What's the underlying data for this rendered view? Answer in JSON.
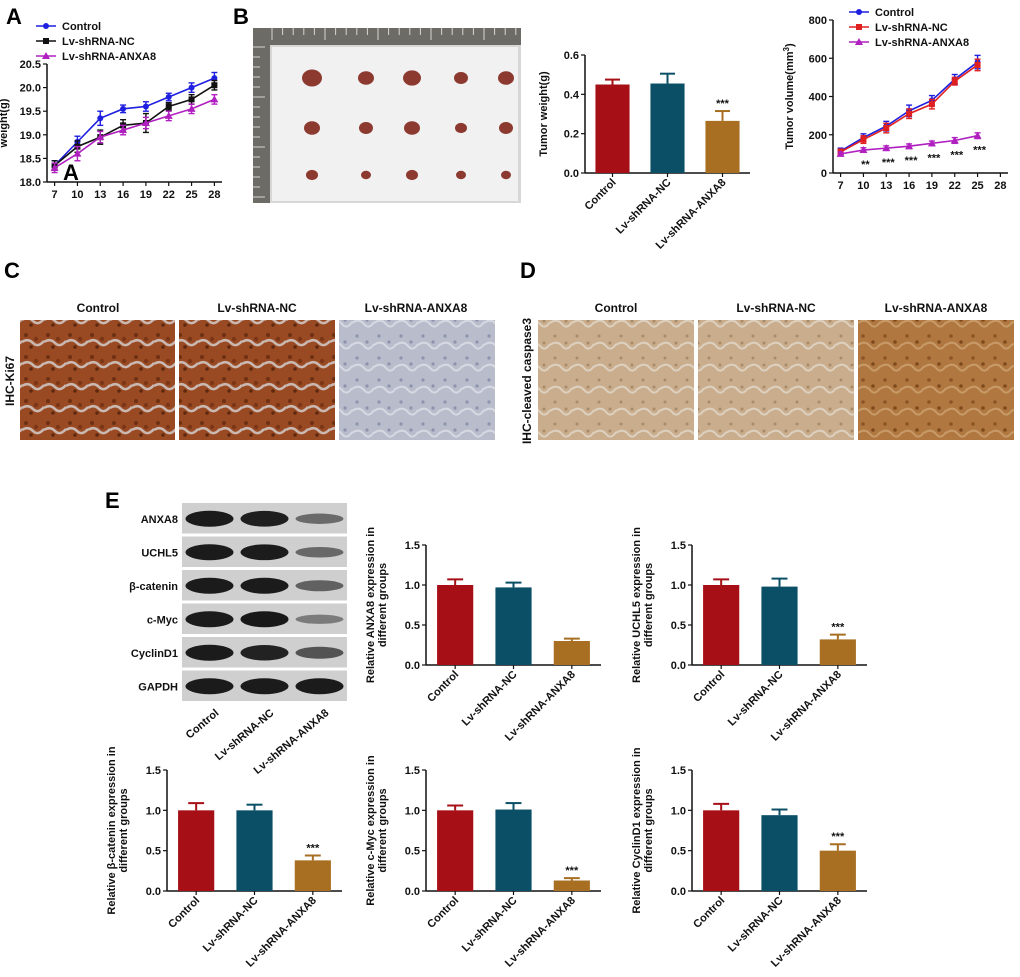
{
  "panel_labels": {
    "A": "A",
    "B": "B",
    "C": "C",
    "D": "D",
    "E": "E"
  },
  "colors": {
    "control": "#a50f15",
    "nc": "#0b4f66",
    "anxa8": "#a86f22",
    "line_control": "#1f1fe0",
    "line_nc": "#111111",
    "line_nc_b": "#e02020",
    "line_anxa8": "#b020c0"
  },
  "chart_data": [
    {
      "id": "A",
      "type": "line",
      "title": "",
      "xlabel": "",
      "ylabel": "weight(g)",
      "x": [
        7,
        10,
        13,
        16,
        19,
        22,
        25,
        28
      ],
      "ylim": [
        18.0,
        20.5
      ],
      "yticks": [
        "18.0",
        "18.5",
        "19.0",
        "19.5",
        "20.0",
        "20.5"
      ],
      "inner_label": "A",
      "series": [
        {
          "name": "Control",
          "values": [
            18.35,
            18.85,
            19.35,
            19.55,
            19.6,
            19.8,
            20.0,
            20.2
          ],
          "errors": [
            0.1,
            0.12,
            0.15,
            0.08,
            0.1,
            0.08,
            0.1,
            0.12
          ]
        },
        {
          "name": "Lv-shRNA-NC",
          "values": [
            18.35,
            18.75,
            18.95,
            19.2,
            19.25,
            19.6,
            19.75,
            20.05
          ],
          "errors": [
            0.1,
            0.12,
            0.15,
            0.12,
            0.2,
            0.08,
            0.1,
            0.1
          ]
        },
        {
          "name": "Lv-shRNA-ANXA8",
          "values": [
            18.3,
            18.6,
            18.95,
            19.1,
            19.25,
            19.4,
            19.55,
            19.75
          ],
          "errors": [
            0.1,
            0.15,
            0.12,
            0.1,
            0.12,
            0.1,
            0.1,
            0.1
          ]
        }
      ]
    },
    {
      "id": "B-weight",
      "type": "bar",
      "title": "",
      "xlabel": "",
      "ylabel": "Tumor weight(g)",
      "categories": [
        "Control",
        "Lv-shRNA-NC",
        "Lv-shRNA-ANXA8"
      ],
      "values": [
        0.45,
        0.455,
        0.265
      ],
      "errors": [
        0.025,
        0.05,
        0.05
      ],
      "ylim": [
        0.0,
        0.6
      ],
      "yticks": [
        "0.0",
        "0.2",
        "0.4",
        "0.6"
      ],
      "significance": [
        "",
        "",
        "***"
      ]
    },
    {
      "id": "B-volume",
      "type": "line",
      "title": "",
      "xlabel": "",
      "ylabel": "Tumor volume(mm",
      "ylabel_sup": "3",
      "ylabel_close": ")",
      "x": [
        7,
        10,
        13,
        16,
        19,
        22,
        25
      ],
      "xticks": [
        "7",
        "10",
        "13",
        "16",
        "19",
        "22",
        "25",
        "28"
      ],
      "ylim": [
        0,
        800
      ],
      "yticks": [
        "0",
        "200",
        "400",
        "600",
        "800"
      ],
      "series": [
        {
          "name": "Control",
          "values": [
            115,
            185,
            245,
            325,
            380,
            490,
            580
          ],
          "errors": [
            15,
            20,
            25,
            30,
            25,
            25,
            35
          ]
        },
        {
          "name": "Lv-shRNA-NC",
          "values": [
            110,
            175,
            235,
            310,
            360,
            480,
            565
          ],
          "errors": [
            15,
            20,
            25,
            25,
            25,
            20,
            30
          ]
        },
        {
          "name": "Lv-shRNA-ANXA8",
          "values": [
            100,
            120,
            130,
            140,
            155,
            170,
            195
          ],
          "errors": [
            10,
            12,
            12,
            12,
            12,
            15,
            15
          ]
        }
      ],
      "significance": [
        "",
        "**",
        "***",
        "***",
        "***",
        "***",
        "***"
      ]
    },
    {
      "id": "E-ANXA8",
      "type": "bar",
      "ylabel": "Relative ANXA8 expression in",
      "ylabel2": "different groups",
      "categories": [
        "Control",
        "Lv-shRNA-NC",
        "Lv-shRNA-ANXA8"
      ],
      "values": [
        1.0,
        0.97,
        0.3
      ],
      "errors": [
        0.07,
        0.06,
        0.03
      ],
      "ylim": [
        0.0,
        1.5
      ],
      "yticks": [
        "0.0",
        "0.5",
        "1.0",
        "1.5"
      ],
      "significance": [
        "",
        "",
        ""
      ]
    },
    {
      "id": "E-UCHL5",
      "type": "bar",
      "ylabel": "Relative UCHL5 expression in",
      "ylabel2": "different groups",
      "categories": [
        "Control",
        "Lv-shRNA-NC",
        "Lv-shRNA-ANXA8"
      ],
      "values": [
        1.0,
        0.98,
        0.32
      ],
      "errors": [
        0.07,
        0.1,
        0.06
      ],
      "ylim": [
        0.0,
        1.5
      ],
      "yticks": [
        "0.0",
        "0.5",
        "1.0",
        "1.5"
      ],
      "significance": [
        "",
        "",
        "***"
      ]
    },
    {
      "id": "E-beta-catenin",
      "type": "bar",
      "ylabel": "Relative β-catenin expression in",
      "ylabel2": "different groups",
      "categories": [
        "Control",
        "Lv-shRNA-NC",
        "Lv-shRNA-ANXA8"
      ],
      "values": [
        1.0,
        1.0,
        0.38
      ],
      "errors": [
        0.09,
        0.07,
        0.06
      ],
      "ylim": [
        0.0,
        1.5
      ],
      "yticks": [
        "0.0",
        "0.5",
        "1.0",
        "1.5"
      ],
      "significance": [
        "",
        "",
        "***"
      ]
    },
    {
      "id": "E-c-Myc",
      "type": "bar",
      "ylabel": "Relative c-Myc expression in",
      "ylabel2": "different groups",
      "categories": [
        "Control",
        "Lv-shRNA-NC",
        "Lv-shRNA-ANXA8"
      ],
      "values": [
        1.0,
        1.01,
        0.13
      ],
      "errors": [
        0.06,
        0.08,
        0.03
      ],
      "ylim": [
        0.0,
        1.5
      ],
      "yticks": [
        "0.0",
        "0.5",
        "1.0",
        "1.5"
      ],
      "significance": [
        "",
        "",
        "***"
      ]
    },
    {
      "id": "E-CyclinD1",
      "type": "bar",
      "ylabel": "Relative CyclinD1 expression in",
      "ylabel2": "different groups",
      "categories": [
        "Control",
        "Lv-shRNA-NC",
        "Lv-shRNA-ANXA8"
      ],
      "values": [
        1.0,
        0.94,
        0.5
      ],
      "errors": [
        0.08,
        0.07,
        0.08
      ],
      "ylim": [
        0.0,
        1.5
      ],
      "yticks": [
        "0.0",
        "0.5",
        "1.0",
        "1.5"
      ],
      "significance": [
        "",
        "",
        "***"
      ]
    }
  ],
  "ihc_c": {
    "ylabel": "IHC-Ki67",
    "columns": [
      "Control",
      "Lv-shRNA-NC",
      "Lv-shRNA-ANXA8"
    ]
  },
  "ihc_d": {
    "ylabel": "IHC-cleaved caspase3",
    "columns": [
      "Control",
      "Lv-shRNA-NC",
      "Lv-shRNA-ANXA8"
    ]
  },
  "western": {
    "rows": [
      "ANXA8",
      "UCHL5",
      "β-catenin",
      "c-Myc",
      "CyclinD1",
      "GAPDH"
    ],
    "columns": [
      "Control",
      "Lv-shRNA-NC",
      "Lv-shRNA-ANXA8"
    ],
    "band_intensity": [
      [
        1.0,
        0.97,
        0.3
      ],
      [
        1.0,
        0.98,
        0.32
      ],
      [
        1.0,
        1.0,
        0.38
      ],
      [
        1.0,
        1.01,
        0.13
      ],
      [
        1.0,
        0.94,
        0.5
      ],
      [
        1.0,
        1.0,
        1.0
      ]
    ]
  }
}
